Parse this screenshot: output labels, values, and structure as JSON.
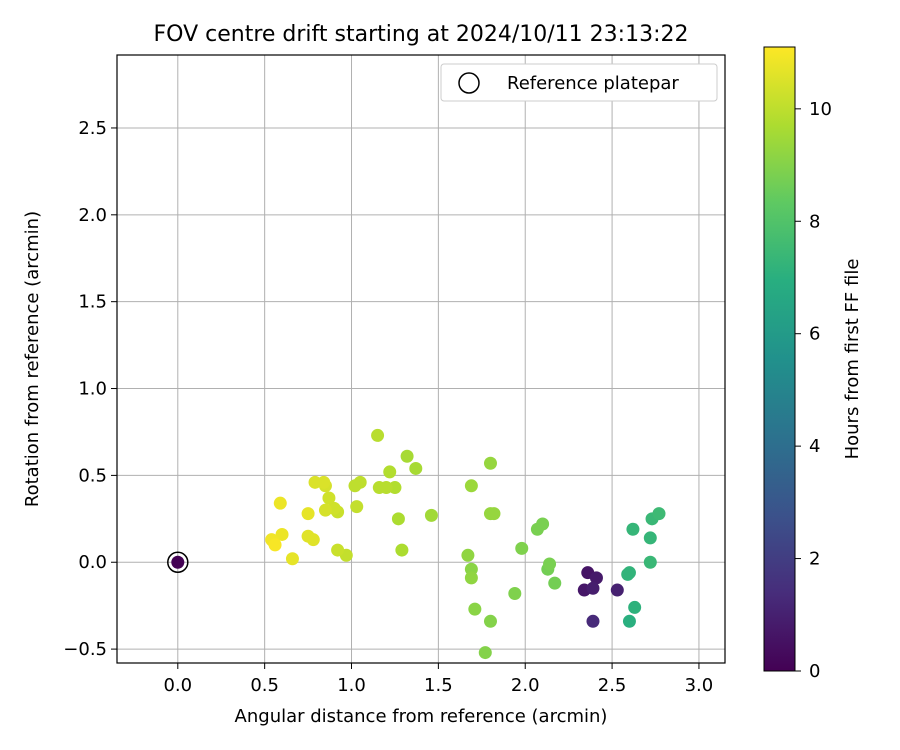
{
  "chart_data": {
    "type": "scatter",
    "title": "FOV centre drift starting at 2024/10/11 23:13:22",
    "xlabel": "Angular distance from reference (arcmin)",
    "ylabel": "Rotation from reference (arcmin)",
    "xlim": [
      -0.35,
      3.15
    ],
    "ylim": [
      -0.58,
      2.92
    ],
    "xticks": [
      "0.0",
      "0.5",
      "1.0",
      "1.5",
      "2.0",
      "2.5",
      "3.0"
    ],
    "yticks": [
      "−0.5",
      "0.0",
      "0.5",
      "1.0",
      "1.5",
      "2.0",
      "2.5"
    ],
    "grid": true,
    "legend": {
      "placement": "top-right",
      "label": "Reference platepar"
    },
    "reference_point": {
      "x": 0.0,
      "y": 0.0,
      "hours": 0
    },
    "colorbar": {
      "label": "Hours from first FF file",
      "colormap": "viridis",
      "range": [
        0,
        11.1
      ],
      "ticks": [
        "0",
        "2",
        "4",
        "6",
        "8",
        "10"
      ]
    },
    "points": [
      {
        "x": 0.0,
        "y": 0.0,
        "hours": 0.0
      },
      {
        "x": 2.36,
        "y": -0.06,
        "hours": 0.6
      },
      {
        "x": 2.34,
        "y": -0.16,
        "hours": 0.7
      },
      {
        "x": 2.41,
        "y": -0.09,
        "hours": 0.8
      },
      {
        "x": 2.39,
        "y": -0.15,
        "hours": 0.9
      },
      {
        "x": 2.53,
        "y": -0.16,
        "hours": 1.0
      },
      {
        "x": 2.39,
        "y": -0.34,
        "hours": 1.3
      },
      {
        "x": 2.6,
        "y": -0.34,
        "hours": 7.0
      },
      {
        "x": 2.63,
        "y": -0.26,
        "hours": 7.1
      },
      {
        "x": 2.59,
        "y": -0.07,
        "hours": 7.2
      },
      {
        "x": 2.6,
        "y": -0.06,
        "hours": 7.2
      },
      {
        "x": 2.62,
        "y": 0.19,
        "hours": 7.3
      },
      {
        "x": 2.72,
        "y": 0.14,
        "hours": 7.3
      },
      {
        "x": 2.72,
        "y": 0.0,
        "hours": 7.4
      },
      {
        "x": 2.73,
        "y": 0.25,
        "hours": 7.4
      },
      {
        "x": 2.77,
        "y": 0.28,
        "hours": 7.5
      },
      {
        "x": 2.17,
        "y": -0.12,
        "hours": 8.7
      },
      {
        "x": 2.13,
        "y": -0.04,
        "hours": 8.7
      },
      {
        "x": 2.14,
        "y": -0.01,
        "hours": 8.8
      },
      {
        "x": 2.07,
        "y": 0.19,
        "hours": 8.8
      },
      {
        "x": 2.1,
        "y": 0.22,
        "hours": 8.8
      },
      {
        "x": 1.98,
        "y": 0.08,
        "hours": 8.9
      },
      {
        "x": 1.94,
        "y": -0.18,
        "hours": 8.9
      },
      {
        "x": 1.8,
        "y": -0.34,
        "hours": 9.0
      },
      {
        "x": 1.77,
        "y": -0.52,
        "hours": 9.0
      },
      {
        "x": 1.71,
        "y": -0.27,
        "hours": 9.1
      },
      {
        "x": 1.69,
        "y": -0.04,
        "hours": 9.1
      },
      {
        "x": 1.69,
        "y": -0.09,
        "hours": 9.2
      },
      {
        "x": 1.67,
        "y": 0.04,
        "hours": 9.2
      },
      {
        "x": 1.8,
        "y": 0.28,
        "hours": 9.3
      },
      {
        "x": 1.82,
        "y": 0.28,
        "hours": 9.3
      },
      {
        "x": 1.8,
        "y": 0.57,
        "hours": 9.3
      },
      {
        "x": 1.69,
        "y": 0.44,
        "hours": 9.4
      },
      {
        "x": 1.46,
        "y": 0.27,
        "hours": 9.5
      },
      {
        "x": 1.37,
        "y": 0.54,
        "hours": 9.6
      },
      {
        "x": 1.32,
        "y": 0.61,
        "hours": 9.6
      },
      {
        "x": 1.29,
        "y": 0.07,
        "hours": 9.7
      },
      {
        "x": 1.27,
        "y": 0.25,
        "hours": 9.7
      },
      {
        "x": 1.25,
        "y": 0.43,
        "hours": 9.8
      },
      {
        "x": 1.22,
        "y": 0.52,
        "hours": 9.8
      },
      {
        "x": 1.2,
        "y": 0.43,
        "hours": 9.9
      },
      {
        "x": 1.16,
        "y": 0.43,
        "hours": 9.9
      },
      {
        "x": 1.15,
        "y": 0.73,
        "hours": 9.9
      },
      {
        "x": 1.05,
        "y": 0.46,
        "hours": 10.0
      },
      {
        "x": 1.02,
        "y": 0.44,
        "hours": 10.0
      },
      {
        "x": 1.03,
        "y": 0.32,
        "hours": 10.1
      },
      {
        "x": 0.97,
        "y": 0.04,
        "hours": 10.1
      },
      {
        "x": 0.92,
        "y": 0.07,
        "hours": 10.2
      },
      {
        "x": 0.92,
        "y": 0.29,
        "hours": 10.2
      },
      {
        "x": 0.9,
        "y": 0.31,
        "hours": 10.3
      },
      {
        "x": 0.87,
        "y": 0.37,
        "hours": 10.3
      },
      {
        "x": 0.85,
        "y": 0.3,
        "hours": 10.4
      },
      {
        "x": 0.85,
        "y": 0.44,
        "hours": 10.4
      },
      {
        "x": 0.84,
        "y": 0.46,
        "hours": 10.5
      },
      {
        "x": 0.79,
        "y": 0.46,
        "hours": 10.5
      },
      {
        "x": 0.78,
        "y": 0.13,
        "hours": 10.6
      },
      {
        "x": 0.75,
        "y": 0.15,
        "hours": 10.6
      },
      {
        "x": 0.75,
        "y": 0.28,
        "hours": 10.7
      },
      {
        "x": 0.66,
        "y": 0.02,
        "hours": 10.7
      },
      {
        "x": 0.6,
        "y": 0.16,
        "hours": 10.8
      },
      {
        "x": 0.59,
        "y": 0.34,
        "hours": 10.8
      },
      {
        "x": 0.55,
        "y": 0.12,
        "hours": 10.9
      },
      {
        "x": 0.54,
        "y": 0.13,
        "hours": 10.9
      },
      {
        "x": 0.56,
        "y": 0.1,
        "hours": 11.0
      }
    ]
  }
}
